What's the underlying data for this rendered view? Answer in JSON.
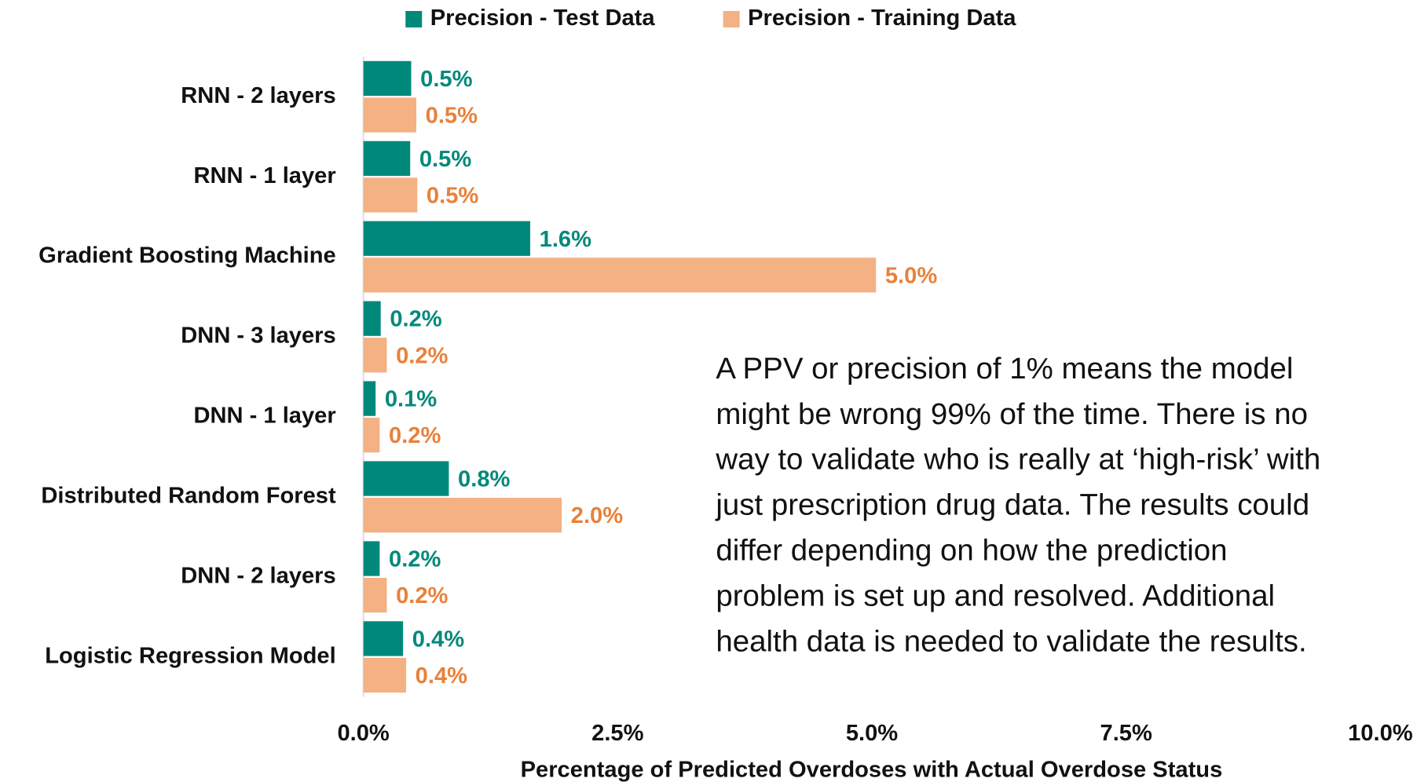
{
  "chart_data": {
    "type": "barh",
    "categories": [
      "RNN - 2 layers",
      "RNN - 1 layer",
      "Gradient Boosting Machine",
      "DNN - 3 layers",
      "DNN - 1 layer",
      "Distributed Random Forest",
      "DNN - 2 layers",
      "Logistic Regression Model"
    ],
    "series": [
      {
        "name": "Precision - Test Data",
        "color": "#00897b",
        "label_color": "#00897b",
        "values": [
          0.47,
          0.46,
          1.64,
          0.17,
          0.12,
          0.84,
          0.16,
          0.39
        ],
        "value_labels": [
          "0.5%",
          "0.5%",
          "1.6%",
          "0.2%",
          "0.1%",
          "0.8%",
          "0.2%",
          "0.4%"
        ]
      },
      {
        "name": "Precision - Training Data",
        "color": "#f4b183",
        "label_color": "#e8813a",
        "values": [
          0.52,
          0.53,
          5.04,
          0.23,
          0.16,
          1.95,
          0.23,
          0.42
        ],
        "value_labels": [
          "0.5%",
          "0.5%",
          "5.0%",
          "0.2%",
          "0.2%",
          "2.0%",
          "0.2%",
          "0.4%"
        ]
      }
    ],
    "xlabel": "Percentage of Predicted Overdoses with Actual Overdose Status",
    "xlim": [
      0,
      10
    ],
    "xticks": [
      {
        "value": 0,
        "label": "0.0%"
      },
      {
        "value": 2.5,
        "label": "2.5%"
      },
      {
        "value": 5,
        "label": "5.0%"
      },
      {
        "value": 7.5,
        "label": "7.5%"
      },
      {
        "value": 10,
        "label": "10.0%"
      }
    ],
    "legend": "top",
    "annotation": [
      "A PPV or precision of 1% means the model",
      "might be wrong 99% of the time. There is no",
      "way to validate who is really at ‘high-risk’ with",
      "just prescription drug data. The results could",
      "differ depending on how the prediction",
      "problem is set up and resolved. Additional",
      "health data is needed to validate the results."
    ]
  }
}
